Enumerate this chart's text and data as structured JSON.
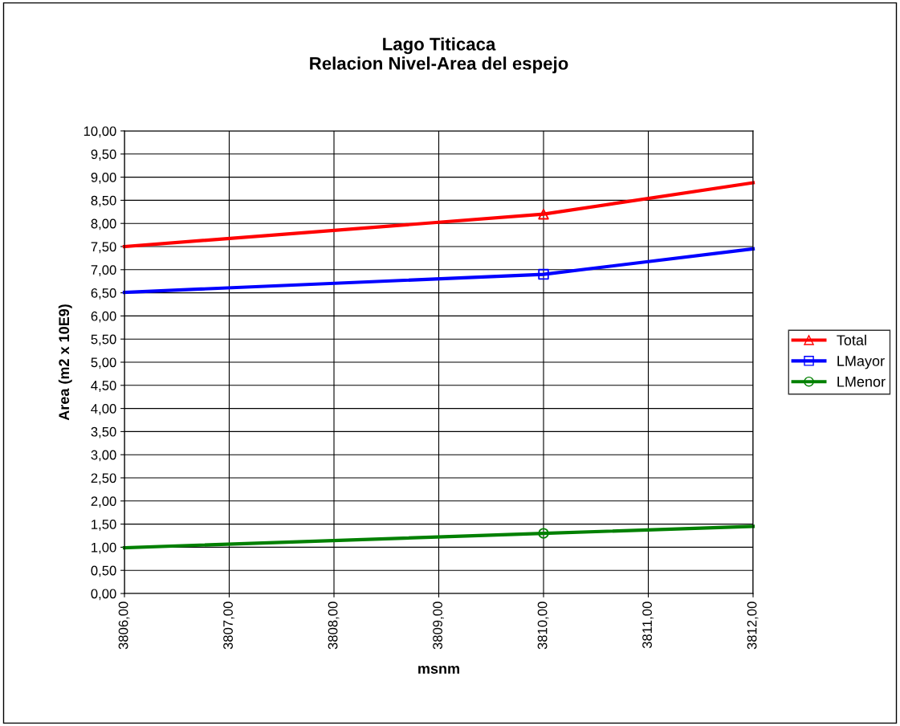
{
  "chart_data": {
    "type": "line",
    "title": "Lago Titicaca\nRelacion Nivel-Area del espejo",
    "xlabel": "msnm",
    "ylabel": "Area (m2 x 10E9)",
    "series": [
      {
        "name": "Total",
        "color": "#ff0000",
        "x": [
          3806,
          3810,
          3812
        ],
        "values": [
          7.5,
          8.2,
          8.88
        ]
      },
      {
        "name": "LMayor",
        "color": "#0000ff",
        "x": [
          3806,
          3810,
          3812
        ],
        "values": [
          6.51,
          6.9,
          7.45
        ]
      },
      {
        "name": "LMenor",
        "color": "#008000",
        "x": [
          3806,
          3810,
          3812
        ],
        "values": [
          0.99,
          1.3,
          1.45
        ]
      },
      {
        "type": "scatter",
        "color": "#ff0000",
        "marker": "triangle",
        "x": [
          3810
        ],
        "values": [
          8.2
        ]
      },
      {
        "type": "scatter",
        "color": "#0000ff",
        "marker": "square",
        "x": [
          3810
        ],
        "values": [
          6.9
        ]
      },
      {
        "type": "scatter",
        "color": "#008000",
        "marker": "circle",
        "x": [
          3810
        ],
        "values": [
          1.3
        ]
      }
    ],
    "xlim": [
      3806,
      3812
    ],
    "xticks": [
      {
        "value": 3806,
        "label": "3806,00"
      },
      {
        "value": 3807,
        "label": "3807,00"
      },
      {
        "value": 3808,
        "label": "3808,00"
      },
      {
        "value": 3809,
        "label": "3809,00"
      },
      {
        "value": 3810,
        "label": "3810,00"
      },
      {
        "value": 3811,
        "label": "3811,00"
      },
      {
        "value": 3812,
        "label": "3812,00"
      }
    ],
    "ylim": [
      0,
      10
    ],
    "yticks": [
      {
        "value": 0,
        "label": "0,00"
      },
      {
        "value": 0.5,
        "label": "0,50"
      },
      {
        "value": 1,
        "label": "1,00"
      },
      {
        "value": 1.5,
        "label": "1,50"
      },
      {
        "value": 2,
        "label": "2,00"
      },
      {
        "value": 2.5,
        "label": "2,50"
      },
      {
        "value": 3,
        "label": "3,00"
      },
      {
        "value": 3.5,
        "label": "3,50"
      },
      {
        "value": 4,
        "label": "4,00"
      },
      {
        "value": 4.5,
        "label": "4,50"
      },
      {
        "value": 5,
        "label": "5,00"
      },
      {
        "value": 5.5,
        "label": "5,50"
      },
      {
        "value": 6,
        "label": "6,00"
      },
      {
        "value": 6.5,
        "label": "6,50"
      },
      {
        "value": 7,
        "label": "7,00"
      },
      {
        "value": 7.5,
        "label": "7,50"
      },
      {
        "value": 8,
        "label": "8,00"
      },
      {
        "value": 8.5,
        "label": "8,50"
      },
      {
        "value": 9,
        "label": "9,00"
      },
      {
        "value": 9.5,
        "label": "9,50"
      },
      {
        "value": 10,
        "label": "10,00"
      }
    ],
    "grid": true,
    "legend": "right",
    "marker": "none",
    "line_style": "solid"
  }
}
